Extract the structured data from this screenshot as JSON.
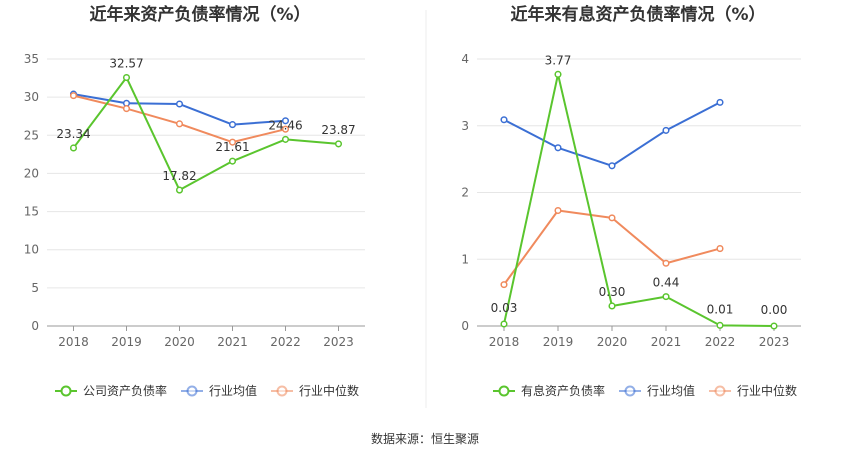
{
  "source_label": "数据来源：恒生聚源",
  "chart_data": [
    {
      "type": "line",
      "title": "近年来资产负债率情况（%）",
      "categories": [
        "2018",
        "2019",
        "2020",
        "2021",
        "2022",
        "2023"
      ],
      "ylim": [
        0,
        35
      ],
      "yticks": [
        0,
        5,
        10,
        15,
        20,
        25,
        30,
        35
      ],
      "grid": true,
      "legend_position": "bottom",
      "series": [
        {
          "name": "公司资产负债率",
          "color": "#5ac52e",
          "values": [
            23.34,
            32.57,
            17.82,
            21.61,
            24.46,
            23.87
          ],
          "labels": [
            "23.34",
            "32.57",
            "17.82",
            "21.61",
            "24.46",
            "23.87"
          ]
        },
        {
          "name": "行业均值",
          "color": "#3b6fd4",
          "values": [
            30.4,
            29.2,
            29.1,
            26.4,
            26.9,
            null
          ]
        },
        {
          "name": "行业中位数",
          "color": "#f08a5d",
          "values": [
            30.2,
            28.5,
            26.5,
            24.1,
            25.8,
            null
          ]
        }
      ]
    },
    {
      "type": "line",
      "title": "近年来有息资产负债率情况（%）",
      "categories": [
        "2018",
        "2019",
        "2020",
        "2021",
        "2022",
        "2023"
      ],
      "ylim": [
        0,
        4
      ],
      "yticks": [
        0,
        1,
        2,
        3,
        4
      ],
      "grid": true,
      "legend_position": "bottom",
      "series": [
        {
          "name": "有息资产负债率",
          "color": "#5ac52e",
          "values": [
            0.03,
            3.77,
            0.3,
            0.44,
            0.01,
            0.0
          ],
          "labels": [
            "0.03",
            "3.77",
            "0.30",
            "0.44",
            "0.01",
            "0.00"
          ]
        },
        {
          "name": "行业均值",
          "color": "#3b6fd4",
          "values": [
            3.09,
            2.67,
            2.4,
            2.93,
            3.35,
            null
          ]
        },
        {
          "name": "行业中位数",
          "color": "#f08a5d",
          "values": [
            0.62,
            1.73,
            1.62,
            0.94,
            1.16,
            null
          ]
        }
      ]
    }
  ]
}
